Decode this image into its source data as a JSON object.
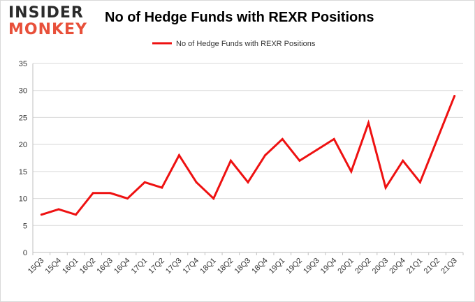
{
  "logo": {
    "line1": "INSIDER",
    "line2": "MONKEY"
  },
  "colors": {
    "series": "#ee1111",
    "grid": "#d9d9d9",
    "axis": "#bfbfbf",
    "logo_dark": "#2b2b2b",
    "logo_accent": "#e8503a"
  },
  "chart_data": {
    "type": "line",
    "title": "No of Hedge Funds with REXR Positions",
    "xlabel": "",
    "ylabel": "",
    "ylim": [
      0,
      35
    ],
    "yticks": [
      0,
      5,
      10,
      15,
      20,
      25,
      30,
      35
    ],
    "grid": true,
    "legend_position": "top-center",
    "categories": [
      "15Q3",
      "15Q4",
      "16Q1",
      "16Q2",
      "16Q3",
      "16Q4",
      "17Q1",
      "17Q2",
      "17Q3",
      "17Q4",
      "18Q1",
      "18Q2",
      "18Q3",
      "18Q4",
      "19Q1",
      "19Q2",
      "19Q3",
      "19Q4",
      "20Q1",
      "20Q2",
      "20Q3",
      "20Q4",
      "21Q1",
      "21Q2",
      "21Q3"
    ],
    "series": [
      {
        "name": "No of Hedge Funds with REXR Positions",
        "values": [
          7,
          8,
          7,
          11,
          11,
          10,
          13,
          12,
          18,
          13,
          10,
          17,
          13,
          18,
          21,
          17,
          19,
          21,
          15,
          24,
          12,
          17,
          13,
          21,
          29
        ]
      }
    ]
  }
}
